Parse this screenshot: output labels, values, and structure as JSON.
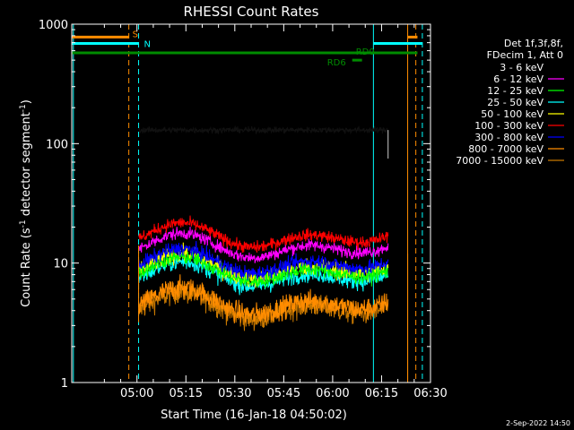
{
  "chart_data": {
    "type": "line",
    "title": "RHESSI Count Rates",
    "xlabel": "Start Time (16-Jan-18 04:50:02)",
    "ylabel_main": "Count Rate (s",
    "ylabel_sup1": "-1",
    "ylabel_mid": " detector segment",
    "ylabel_sup2": "-1",
    "ylabel_end": ")",
    "yscale": "log",
    "ylim": [
      1,
      1000
    ],
    "xlim_minutes": [
      -10,
      100
    ],
    "x_ticks": [
      "05:00",
      "05:15",
      "05:30",
      "05:45",
      "06:00",
      "06:15",
      "06:30"
    ],
    "y_ticks": [
      "1",
      "10",
      "100",
      "1000"
    ],
    "legend_header": [
      "Det 1f,3f,8f,",
      "FDecim 1, Att 0"
    ],
    "legend_position": "right",
    "series": [
      {
        "name": "3 - 6 keV",
        "color": "#000000",
        "level": 130,
        "amp": 0.02,
        "noise": 0.025
      },
      {
        "name": "6 - 12 keV",
        "color": "#ff00ff",
        "level": 13.5,
        "amp": 0.12,
        "noise": 0.05
      },
      {
        "name": "12 - 25 keV",
        "color": "#00ff00",
        "level": 8.5,
        "amp": 0.12,
        "noise": 0.06
      },
      {
        "name": "25 - 50 keV",
        "color": "#00ffff",
        "level": 7.8,
        "amp": 0.12,
        "noise": 0.07
      },
      {
        "name": "50 - 100 keV",
        "color": "#ffff00",
        "level": 9.0,
        "amp": 0.12,
        "noise": 0.07
      },
      {
        "name": "100 - 300 keV",
        "color": "#ff0000",
        "level": 16.5,
        "amp": 0.12,
        "noise": 0.05
      },
      {
        "name": "300 - 800 keV",
        "color": "#0000ff",
        "level": 10.0,
        "amp": 0.12,
        "noise": 0.06
      },
      {
        "name": "800 - 7000 keV",
        "color": "#ff8c00",
        "level": 4.6,
        "amp": 0.13,
        "noise": 0.09
      },
      {
        "name": "7000 - 15000 keV",
        "color": "#c87800",
        "level": 4.2,
        "amp": 0.13,
        "noise": 0.09
      }
    ],
    "data_span_minutes": [
      10.5,
      87
    ],
    "vertical_lines": [
      {
        "minute": -9.5,
        "color": "#00ffff",
        "dash": false
      },
      {
        "minute": 7.5,
        "color": "#ff8c00",
        "dash": true
      },
      {
        "minute": 10.5,
        "color": "#00ffff",
        "dash": true
      },
      {
        "minute": 82.5,
        "color": "#00ffff",
        "dash": false
      },
      {
        "minute": 93,
        "color": "#ff8c00",
        "dash": false
      },
      {
        "minute": 95.5,
        "color": "#ff8c00",
        "dash": true
      },
      {
        "minute": 97.5,
        "color": "#00ffff",
        "dash": true
      }
    ],
    "flag_bars": [
      {
        "label": "S",
        "color": "#ff8c00",
        "y": 780,
        "segments": [
          [
            -10,
            7.5
          ],
          [
            93,
            96
          ]
        ]
      },
      {
        "label": "N",
        "color": "#00ffff",
        "y": 690,
        "segments": [
          [
            -10,
            10.5
          ],
          [
            82.5,
            97.5
          ]
        ]
      },
      {
        "label": "RD0",
        "color": "#008c00",
        "y": 575,
        "segments": [
          [
            -10,
            96
          ]
        ]
      },
      {
        "label": "RD6",
        "color": "#008c00",
        "y": 500,
        "segments": [
          [
            76,
            79
          ]
        ]
      }
    ]
  },
  "footer": {
    "timestamp": "2-Sep-2022 14:50"
  }
}
